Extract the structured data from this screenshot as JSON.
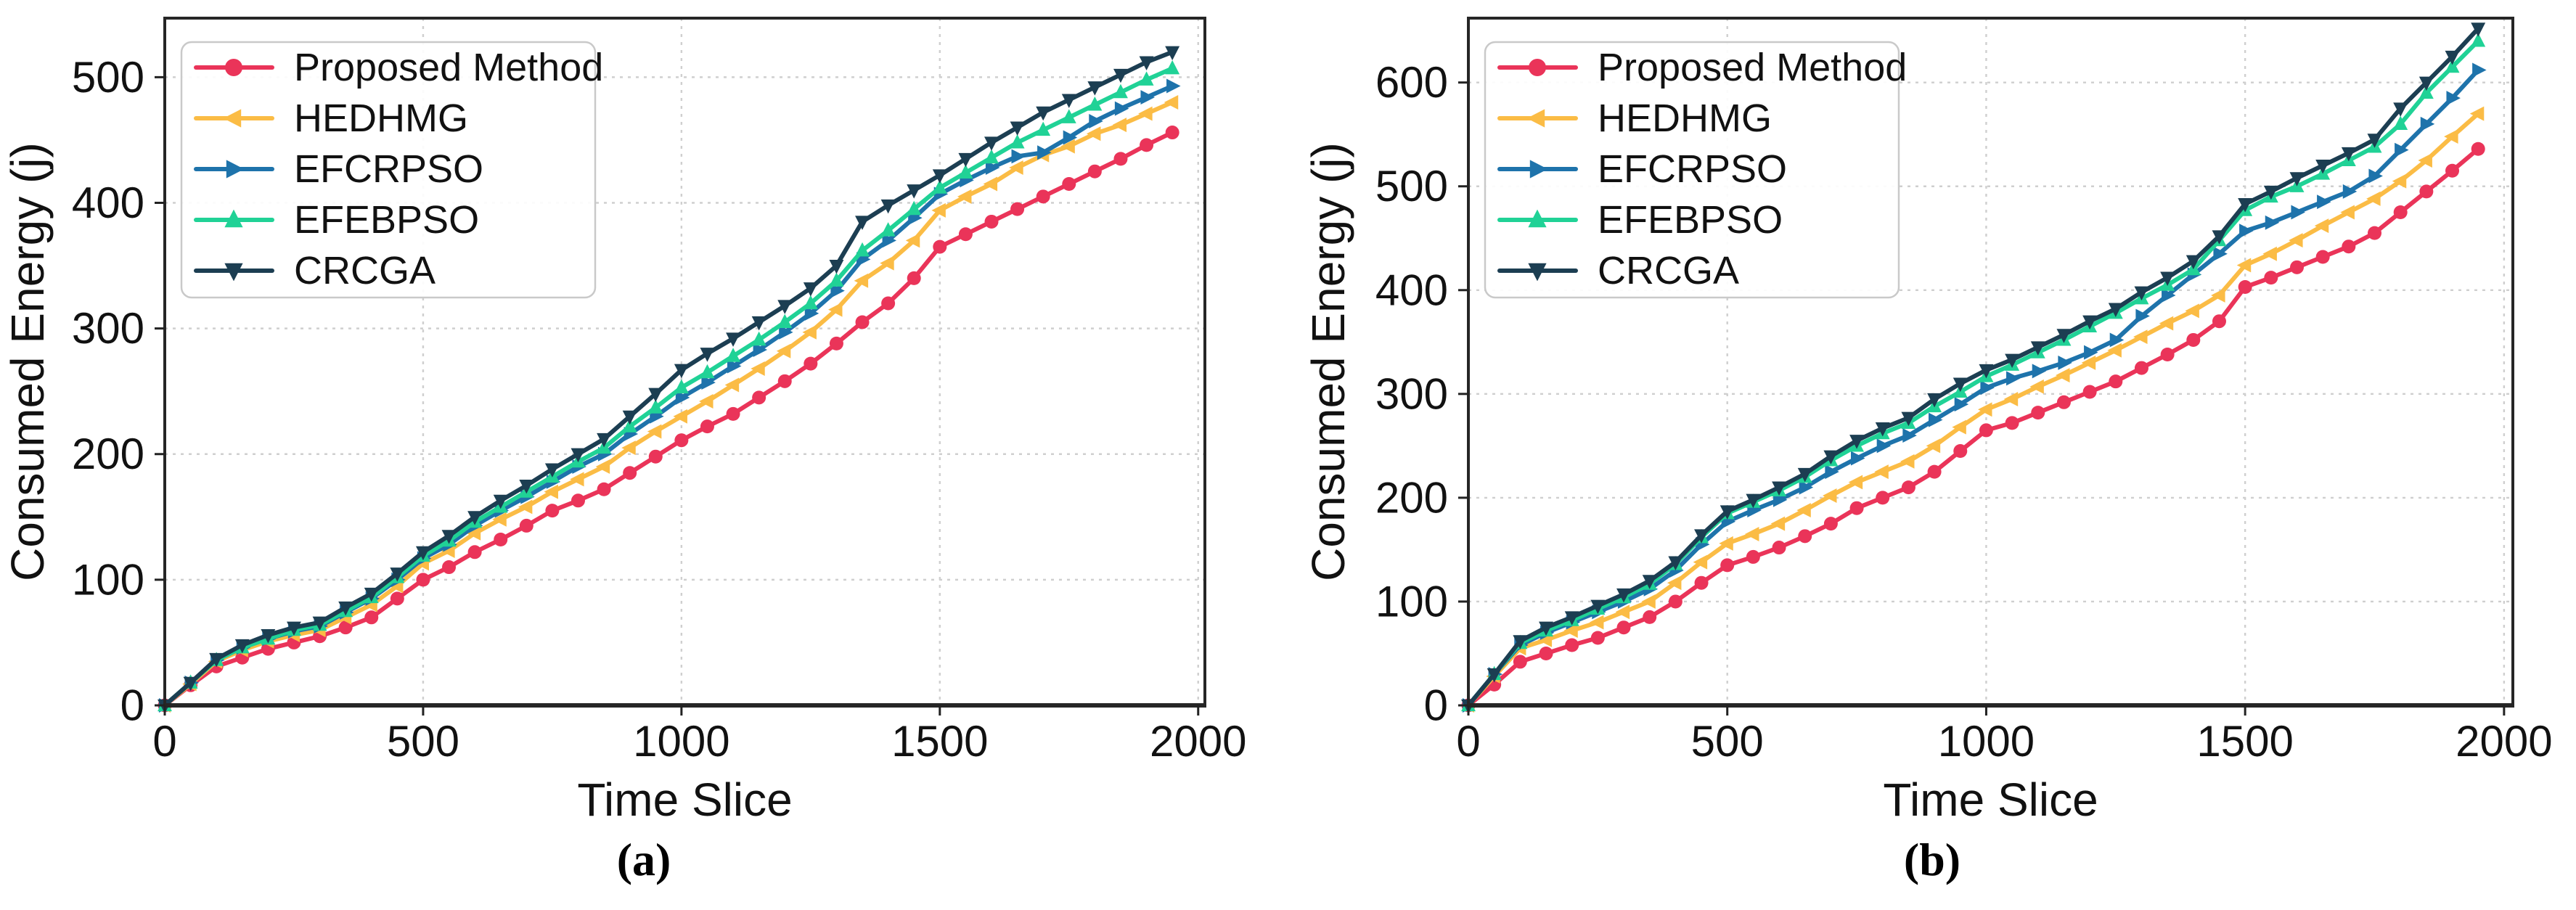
{
  "figure": {
    "captions": {
      "a": "(a)",
      "b": "(b)"
    }
  },
  "colors": {
    "proposed_method": "#ea3459",
    "hedhmg": "#fbbc45",
    "efcrpso": "#1e73ab",
    "efebpso": "#20d296",
    "crcga": "#1c3e52",
    "grid": "#cfcfcf",
    "spine": "#262626",
    "text": "#111111",
    "legend_border": "#c9c9c9"
  },
  "chart_data": [
    {
      "type": "line",
      "panel": "a",
      "caption": "(a)",
      "xlabel": "Time Slice",
      "ylabel": "Consumed Energy (j)",
      "xticks": [
        0,
        500,
        1000,
        1500,
        2000
      ],
      "yticks": [
        0,
        100,
        200,
        300,
        400,
        500
      ],
      "xlim": [
        0,
        2013
      ],
      "ylim": [
        0,
        547
      ],
      "grid": true,
      "legend_position": "upper left",
      "x": [
        0,
        50,
        100,
        150,
        200,
        250,
        300,
        350,
        400,
        450,
        500,
        550,
        600,
        650,
        700,
        750,
        800,
        850,
        900,
        950,
        1000,
        1050,
        1100,
        1150,
        1200,
        1250,
        1300,
        1350,
        1400,
        1450,
        1500,
        1550,
        1600,
        1650,
        1700,
        1750,
        1800,
        1850,
        1900,
        1950
      ],
      "series": [
        {
          "name": "Proposed Method",
          "color": "#ea3459",
          "marker": "circle",
          "values": [
            0,
            16,
            31,
            38,
            45,
            50,
            55,
            62,
            70,
            85,
            100,
            110,
            122,
            132,
            143,
            155,
            163,
            172,
            185,
            198,
            211,
            222,
            232,
            245,
            258,
            272,
            288,
            305,
            320,
            340,
            365,
            375,
            385,
            395,
            405,
            415,
            425,
            435,
            446,
            456
          ]
        },
        {
          "name": "HEDHMG",
          "color": "#fbbc45",
          "marker": "triangle-left",
          "values": [
            0,
            17,
            35,
            44,
            51,
            56,
            60,
            70,
            80,
            95,
            113,
            123,
            137,
            148,
            158,
            170,
            180,
            190,
            205,
            218,
            230,
            242,
            255,
            268,
            282,
            297,
            315,
            338,
            352,
            370,
            394,
            405,
            415,
            428,
            438,
            445,
            455,
            462,
            471,
            480
          ]
        },
        {
          "name": "EFCRPSO",
          "color": "#1e73ab",
          "marker": "triangle-right",
          "values": [
            0,
            18,
            36,
            46,
            53,
            59,
            63,
            74,
            85,
            100,
            117,
            128,
            143,
            155,
            166,
            178,
            190,
            200,
            216,
            230,
            245,
            257,
            270,
            283,
            297,
            312,
            330,
            355,
            370,
            388,
            407,
            418,
            428,
            437,
            440,
            452,
            465,
            475,
            484,
            493
          ]
        },
        {
          "name": "EFEBPSO",
          "color": "#20d296",
          "marker": "triangle-up",
          "values": [
            0,
            18,
            36,
            46,
            53,
            60,
            64,
            75,
            86,
            102,
            119,
            131,
            146,
            158,
            170,
            182,
            194,
            205,
            222,
            237,
            253,
            265,
            278,
            291,
            305,
            320,
            338,
            362,
            378,
            395,
            412,
            424,
            436,
            448,
            458,
            468,
            478,
            488,
            498,
            507
          ]
        },
        {
          "name": "CRCGA",
          "color": "#1c3e52",
          "marker": "triangle-down",
          "values": [
            0,
            18,
            37,
            48,
            56,
            62,
            66,
            78,
            89,
            105,
            122,
            135,
            150,
            163,
            175,
            188,
            200,
            212,
            230,
            248,
            267,
            280,
            292,
            305,
            318,
            332,
            350,
            385,
            398,
            410,
            422,
            435,
            448,
            460,
            472,
            482,
            492,
            502,
            512,
            520
          ]
        }
      ]
    },
    {
      "type": "line",
      "panel": "b",
      "caption": "(b)",
      "xlabel": "Time Slice",
      "ylabel": "Consumed Energy (j)",
      "xticks": [
        0,
        500,
        1000,
        1500,
        2000
      ],
      "yticks": [
        0,
        100,
        200,
        300,
        400,
        500,
        600
      ],
      "xlim": [
        0,
        2017
      ],
      "ylim": [
        0,
        662
      ],
      "grid": true,
      "legend_position": "upper left",
      "x": [
        0,
        50,
        100,
        150,
        200,
        250,
        300,
        350,
        400,
        450,
        500,
        550,
        600,
        650,
        700,
        750,
        800,
        850,
        900,
        950,
        1000,
        1050,
        1100,
        1150,
        1200,
        1250,
        1300,
        1350,
        1400,
        1450,
        1500,
        1550,
        1600,
        1650,
        1700,
        1750,
        1800,
        1850,
        1900,
        1950
      ],
      "series": [
        {
          "name": "Proposed Method",
          "color": "#ea3459",
          "marker": "circle",
          "values": [
            0,
            20,
            42,
            50,
            58,
            65,
            75,
            85,
            100,
            118,
            135,
            143,
            152,
            163,
            175,
            190,
            200,
            210,
            225,
            245,
            265,
            272,
            282,
            292,
            302,
            312,
            325,
            338,
            352,
            370,
            403,
            412,
            422,
            432,
            442,
            455,
            475,
            495,
            515,
            536
          ]
        },
        {
          "name": "HEDHMG",
          "color": "#fbbc45",
          "marker": "triangle-left",
          "values": [
            0,
            28,
            55,
            63,
            72,
            80,
            90,
            100,
            118,
            138,
            156,
            165,
            175,
            188,
            202,
            215,
            225,
            235,
            250,
            268,
            285,
            295,
            307,
            318,
            330,
            342,
            355,
            368,
            380,
            395,
            424,
            435,
            448,
            462,
            475,
            488,
            505,
            525,
            548,
            570
          ]
        },
        {
          "name": "EFCRPSO",
          "color": "#1e73ab",
          "marker": "triangle-right",
          "values": [
            0,
            30,
            58,
            70,
            80,
            90,
            100,
            112,
            130,
            155,
            177,
            188,
            198,
            210,
            225,
            238,
            250,
            260,
            275,
            290,
            306,
            315,
            322,
            330,
            340,
            352,
            375,
            395,
            415,
            435,
            457,
            465,
            475,
            485,
            495,
            510,
            535,
            560,
            585,
            612
          ]
        },
        {
          "name": "EFEBPSO",
          "color": "#20d296",
          "marker": "triangle-up",
          "values": [
            0,
            30,
            60,
            72,
            82,
            93,
            104,
            117,
            136,
            162,
            185,
            196,
            207,
            220,
            236,
            250,
            262,
            272,
            288,
            302,
            317,
            328,
            340,
            352,
            365,
            378,
            392,
            405,
            420,
            448,
            477,
            490,
            500,
            512,
            525,
            538,
            560,
            590,
            615,
            640
          ]
        },
        {
          "name": "CRCGA",
          "color": "#1c3e52",
          "marker": "triangle-down",
          "values": [
            0,
            30,
            62,
            75,
            85,
            96,
            107,
            120,
            138,
            164,
            187,
            198,
            210,
            223,
            240,
            255,
            267,
            277,
            295,
            310,
            323,
            333,
            345,
            357,
            370,
            382,
            398,
            412,
            428,
            452,
            483,
            495,
            508,
            520,
            532,
            545,
            575,
            600,
            625,
            652
          ]
        }
      ]
    }
  ]
}
